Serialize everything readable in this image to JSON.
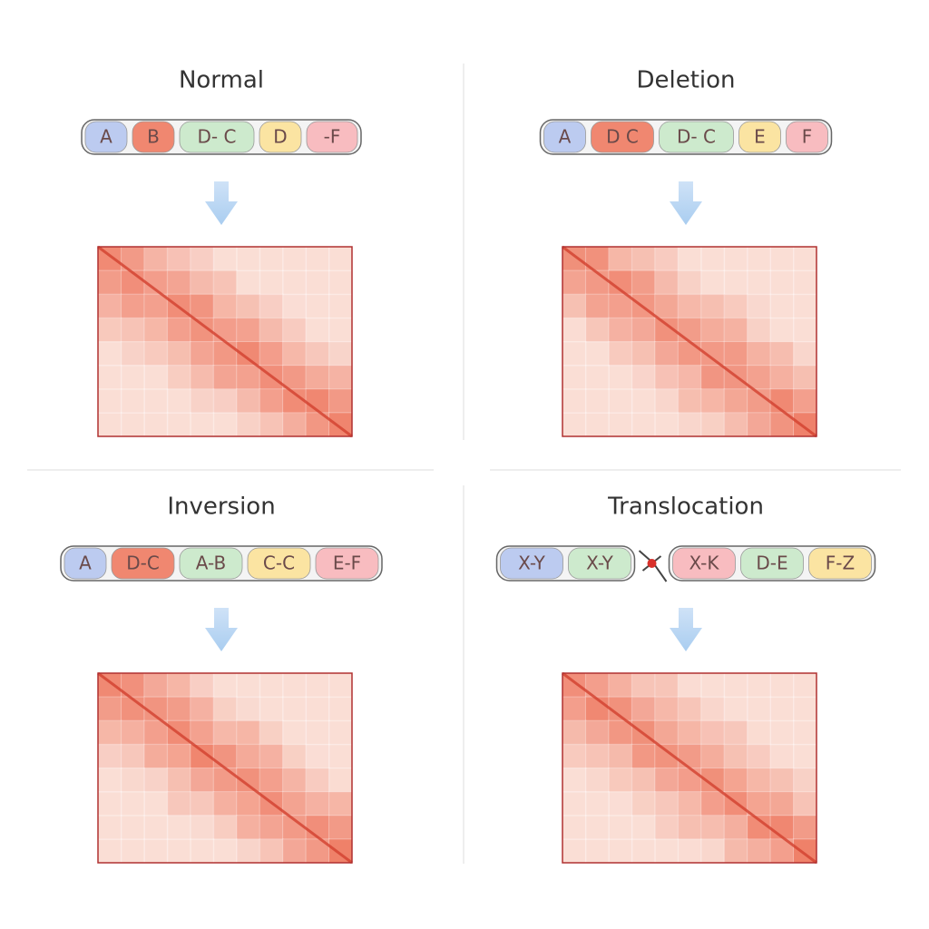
{
  "panels": [
    {
      "title": "Normal",
      "chromosomes": [
        [
          {
            "label": "A",
            "color": "#bccbf0"
          },
          {
            "label": "B",
            "color": "#f08770"
          },
          {
            "label": "D- C",
            "color": "#cdeacd"
          },
          {
            "label": "D",
            "color": "#fbe4a2"
          },
          {
            "label": "-F",
            "color": "#f8bcc0"
          }
        ]
      ]
    },
    {
      "title": "Deletion",
      "chromosomes": [
        [
          {
            "label": "A",
            "color": "#bccbf0"
          },
          {
            "label": "D C",
            "color": "#f08770"
          },
          {
            "label": "D- C",
            "color": "#cdeacd"
          },
          {
            "label": "E",
            "color": "#fbe4a2"
          },
          {
            "label": "F",
            "color": "#f8bcc0"
          }
        ]
      ]
    },
    {
      "title": "Inversion",
      "chromosomes": [
        [
          {
            "label": "A",
            "color": "#bccbf0"
          },
          {
            "label": "D-C",
            "color": "#f08770"
          },
          {
            "label": "A-B",
            "color": "#cdeacd"
          },
          {
            "label": "C-C",
            "color": "#fbe4a2"
          },
          {
            "label": "E-F",
            "color": "#f8bcc0"
          }
        ]
      ]
    },
    {
      "title": "Translocation",
      "chromosomes": [
        [
          {
            "label": "X-Y",
            "color": "#bccbf0"
          },
          {
            "label": "X-Y",
            "color": "#cdeacd"
          }
        ],
        [
          {
            "label": "X-K",
            "color": "#f8bcc0"
          },
          {
            "label": "D-E",
            "color": "#cdeacd"
          },
          {
            "label": "F-Z",
            "color": "#fbe4a2"
          }
        ]
      ]
    }
  ]
}
